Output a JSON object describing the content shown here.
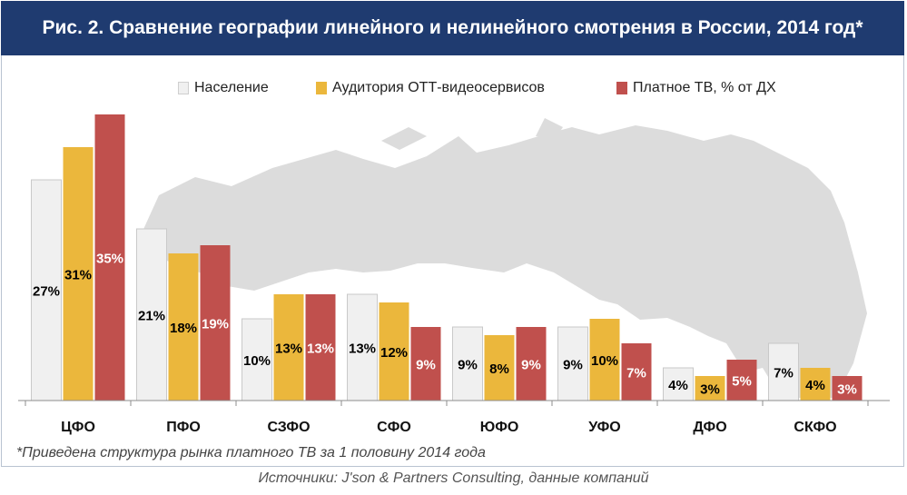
{
  "header": {
    "title": "Рис. 2. Сравнение географии линейного и нелинейного смотрения в России, 2014 год*"
  },
  "chart_data": {
    "type": "bar",
    "title": "Рис. 2. Сравнение географии линейного и нелинейного смотрения в России, 2014 год*",
    "categories": [
      "ЦФО",
      "ПФО",
      "СЗФО",
      "СФО",
      "ЮФО",
      "УФО",
      "ДФО",
      "СКФО"
    ],
    "series": [
      {
        "name": "Население",
        "color": "#f0f0f0",
        "label_color": "#000000",
        "values": [
          27,
          21,
          10,
          13,
          9,
          9,
          4,
          7
        ]
      },
      {
        "name": "Аудитория ОТТ-видеосервисов",
        "color": "#ebb73c",
        "label_color": "#000000",
        "values": [
          31,
          18,
          13,
          12,
          8,
          10,
          3,
          4
        ]
      },
      {
        "name": "Платное ТВ, % от ДХ",
        "color": "#c0504d",
        "label_color": "#ffffff",
        "values": [
          35,
          19,
          13,
          9,
          9,
          7,
          5,
          3
        ]
      }
    ],
    "value_suffix": "%",
    "ylim": [
      0,
      37
    ],
    "xlabel": "",
    "ylabel": "",
    "grid": false,
    "legend_position": "top"
  },
  "notes": {
    "footnote": "*Приведена структура рынка платного ТВ за 1 половину 2014 года",
    "source": "Источники: J'son & Partners Consulting, данные компаний"
  },
  "colors": {
    "title_bg": "#1f3b70",
    "map_fill": "#dcdcdc",
    "axis": "#8c8c8c"
  },
  "icons": {
    "background": "russia-map-silhouette"
  }
}
